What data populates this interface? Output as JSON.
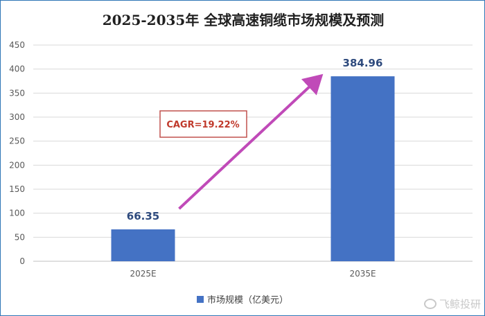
{
  "colors": {
    "bar": "#4472c4",
    "arrow": "#c04ab8",
    "cagr_border": "#c0504d",
    "cagr_text": "#c0392b",
    "label": "#2e4a7d",
    "grid": "#d9d9d9"
  },
  "chart_data": {
    "type": "bar",
    "title": "2025-2035年 全球高速铜缆市场规模及预测",
    "categories": [
      "2025E",
      "2035E"
    ],
    "series": [
      {
        "name": "市场规模（亿美元）",
        "values": [
          66.35,
          384.96
        ]
      }
    ],
    "data_labels": [
      "66.35",
      "384.96"
    ],
    "ylim": [
      0,
      450
    ],
    "yticks": [
      0,
      50,
      100,
      150,
      200,
      250,
      300,
      350,
      400,
      450
    ],
    "grid": true,
    "legend": "bottom",
    "annotation": {
      "text": "CAGR=19.22%",
      "from": "2025E",
      "to": "2035E"
    }
  },
  "watermark": {
    "icon": "weibo-icon",
    "text": "飞鲸投研"
  }
}
